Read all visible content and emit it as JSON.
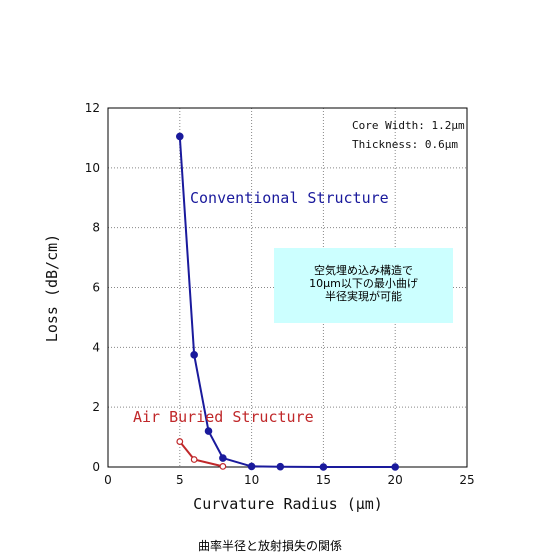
{
  "chart_data": {
    "type": "line",
    "xlabel": "Curvature Radius (μm)",
    "ylabel": "Loss (dB/cm)",
    "xlim": [
      0,
      25
    ],
    "ylim": [
      0,
      12
    ],
    "x_ticks": [
      0,
      5,
      10,
      15,
      20,
      25
    ],
    "y_ticks": [
      0,
      2,
      4,
      6,
      8,
      10,
      12
    ],
    "grid": "dotted",
    "series": [
      {
        "name": "Conventional Structure",
        "color": "#1a1a9c",
        "marker": "filled-circle",
        "x": [
          5,
          6,
          7,
          8,
          10,
          12,
          15,
          20
        ],
        "y": [
          11.05,
          3.75,
          1.2,
          0.3,
          0.02,
          0.01,
          0.0,
          0.0
        ]
      },
      {
        "name": "Air Buried Structure",
        "color": "#c0282a",
        "marker": "open-circle",
        "x": [
          5,
          6,
          8
        ],
        "y": [
          0.85,
          0.25,
          0.02
        ]
      }
    ],
    "annotations": [
      "Core Width: 1.2μm",
      "Thickness: 0.6μm"
    ],
    "note": [
      "空気埋め込み構造で",
      "10μm以下の最小曲げ",
      "半径実現が可能"
    ],
    "caption": "曲率半径と放射損失の関係"
  }
}
